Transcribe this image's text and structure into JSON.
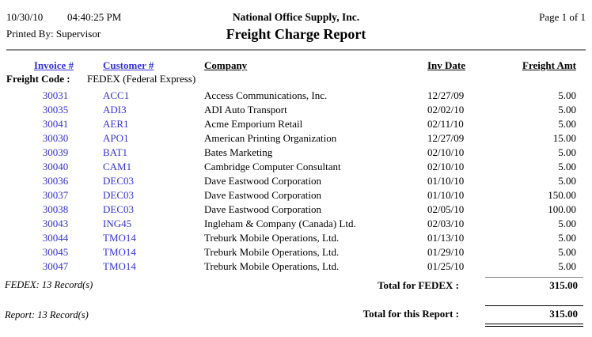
{
  "page": {
    "print_date": "10/30/10",
    "print_time": "04:40:25 PM",
    "printed_by": "Printed By: Supervisor",
    "company_name": "National Office Supply, Inc.",
    "report_title": "Freight Charge Report",
    "page_label": "Page 1 of 1"
  },
  "table": {
    "headers": {
      "invoice": "Invoice #",
      "customer": "Customer #",
      "company": "Company",
      "inv_date": "Inv Date",
      "freight_amt": "Freight Amt"
    },
    "group_label": "Freight Code :",
    "group_value": "FEDEX (Federal Express)",
    "rows": [
      {
        "invoice": "30031",
        "customer": "ACC1",
        "company": "Access Communications, Inc.",
        "inv_date": "12/27/09",
        "freight_amt": "5.00"
      },
      {
        "invoice": "30035",
        "customer": "ADI3",
        "company": "ADI Auto Transport",
        "inv_date": "02/02/10",
        "freight_amt": "5.00"
      },
      {
        "invoice": "30041",
        "customer": "AER1",
        "company": "Acme Emporium Retail",
        "inv_date": "02/11/10",
        "freight_amt": "5.00"
      },
      {
        "invoice": "30030",
        "customer": "APO1",
        "company": "American Printing Organization",
        "inv_date": "12/27/09",
        "freight_amt": "15.00"
      },
      {
        "invoice": "30039",
        "customer": "BAT1",
        "company": "Bates Marketing",
        "inv_date": "02/10/10",
        "freight_amt": "5.00"
      },
      {
        "invoice": "30040",
        "customer": "CAM1",
        "company": "Cambridge Computer Consultant",
        "inv_date": "02/10/10",
        "freight_amt": "5.00"
      },
      {
        "invoice": "30036",
        "customer": "DEC03",
        "company": "Dave Eastwood Corporation",
        "inv_date": "01/10/10",
        "freight_amt": "5.00"
      },
      {
        "invoice": "30037",
        "customer": "DEC03",
        "company": "Dave Eastwood Corporation",
        "inv_date": "01/10/10",
        "freight_amt": "150.00"
      },
      {
        "invoice": "30038",
        "customer": "DEC03",
        "company": "Dave Eastwood Corporation",
        "inv_date": "02/05/10",
        "freight_amt": "100.00"
      },
      {
        "invoice": "30043",
        "customer": "ING45",
        "company": "Ingleham & Company (Canada) Ltd.",
        "inv_date": "02/03/10",
        "freight_amt": "5.00"
      },
      {
        "invoice": "30044",
        "customer": "TMO14",
        "company": "Treburk Mobile Operations, Ltd.",
        "inv_date": "01/13/10",
        "freight_amt": "5.00"
      },
      {
        "invoice": "30045",
        "customer": "TMO14",
        "company": "Treburk Mobile Operations, Ltd.",
        "inv_date": "01/29/10",
        "freight_amt": "5.00"
      },
      {
        "invoice": "30047",
        "customer": "TMO14",
        "company": "Treburk Mobile Operations, Ltd.",
        "inv_date": "01/25/10",
        "freight_amt": "5.00"
      }
    ]
  },
  "totals": {
    "group_record_count": "FEDEX: 13 Record(s)",
    "group_total_label": "Total for FEDEX :",
    "group_total_amount": "315.00",
    "report_record_count": "Report: 13 Record(s)",
    "report_total_label": "Total for this Report :",
    "report_total_amount": "315.00"
  },
  "colors": {
    "link_blue": "#3333cc",
    "rule_gray": "#8a8a8a",
    "text": "#000000",
    "background": "#ffffff"
  }
}
